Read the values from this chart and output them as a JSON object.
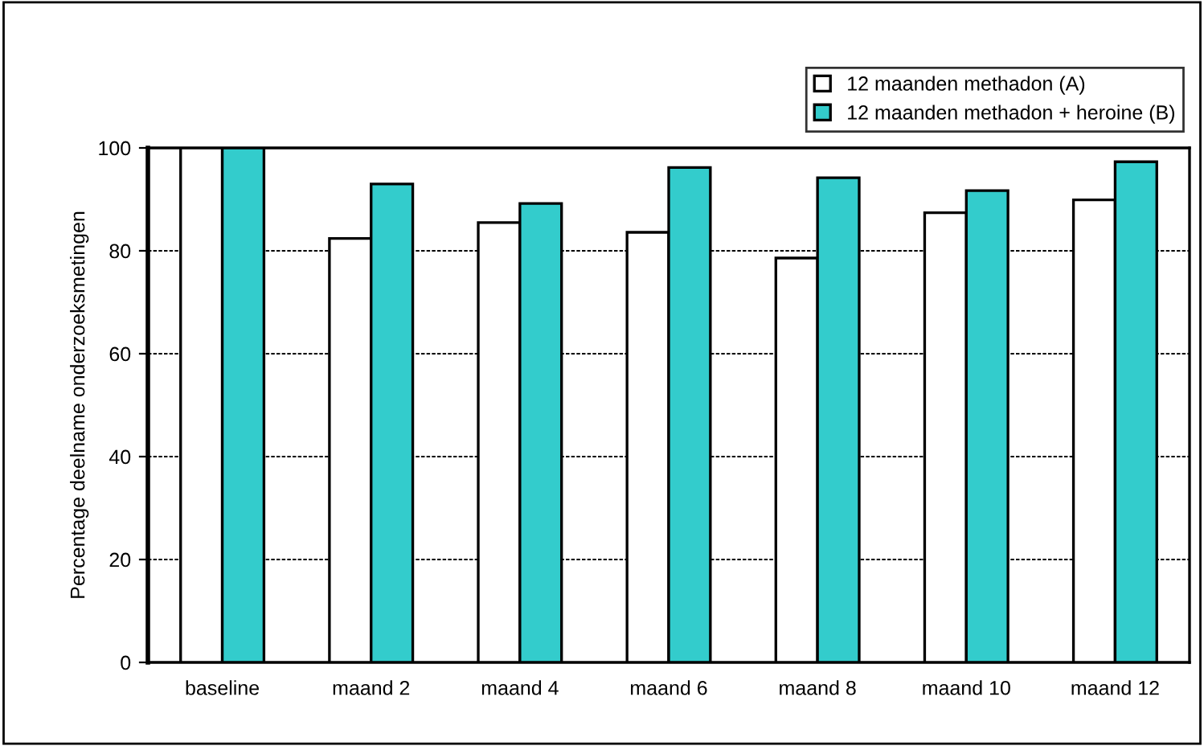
{
  "chart_data": {
    "type": "bar",
    "ylabel": "Percentage deelname onderzoeksmetingen",
    "categories": [
      "baseline",
      "maand 2",
      "maand 4",
      "maand 6",
      "maand 8",
      "maand 10",
      "maand 12"
    ],
    "series": [
      {
        "name": "12 maanden methadon (A)",
        "color": "#ffffff",
        "values": [
          100,
          82.4,
          85.5,
          83.6,
          78.6,
          87.4,
          89.9
        ]
      },
      {
        "name": "12 maanden methadon + heroine (B)",
        "color": "#33cccc",
        "values": [
          100,
          93.0,
          89.2,
          96.2,
          94.2,
          91.7,
          97.3
        ]
      }
    ],
    "ylim": [
      0,
      100
    ],
    "yticks": [
      0,
      20,
      40,
      60,
      80,
      100
    ],
    "grid": "y",
    "legend": "top right"
  }
}
